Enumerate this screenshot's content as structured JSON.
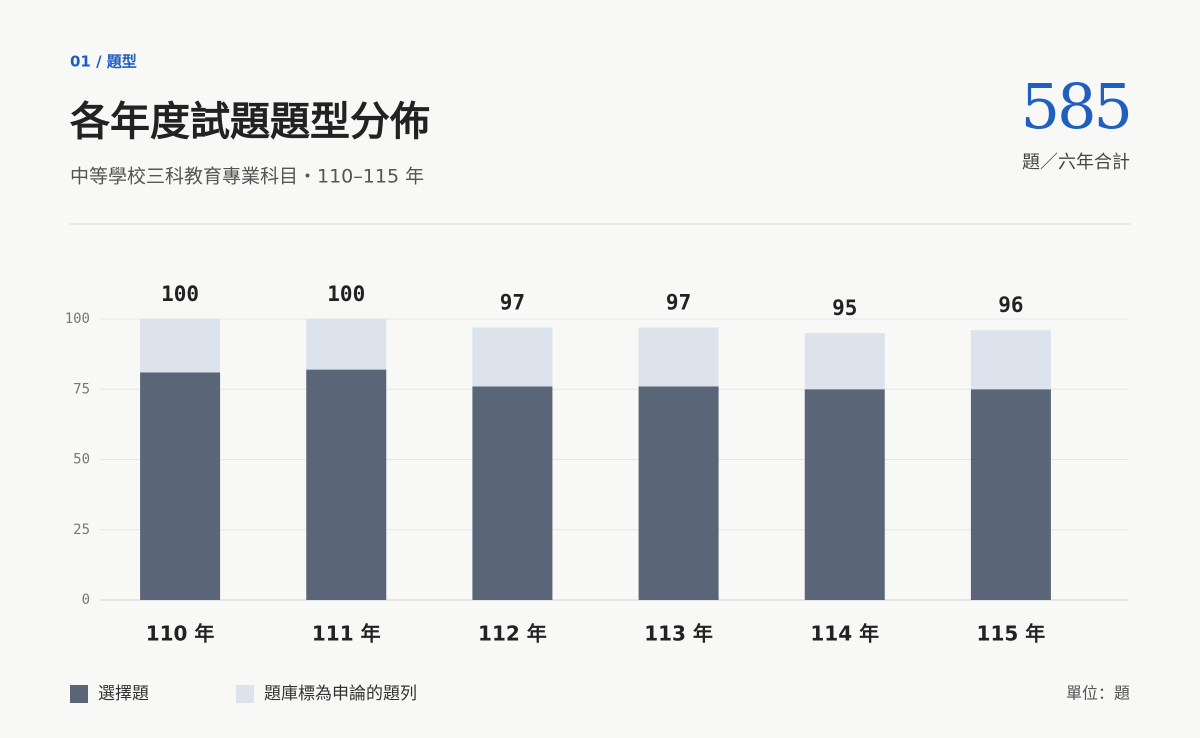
{
  "header": {
    "eyebrow": "01 / 題型",
    "title": "各年度試題題型分佈",
    "subtitle": "中等學校三科教育專業科目・110–115 年"
  },
  "summary": {
    "value": 585,
    "caption": "題／六年合計"
  },
  "unit_note": "單位：題",
  "chart_data": {
    "type": "stacked_bar",
    "categories": [
      "110 年",
      "111 年",
      "112 年",
      "113 年",
      "114 年",
      "115 年"
    ],
    "series": [
      {
        "name": "選擇題",
        "color": "#5a6577",
        "values": [
          81,
          82,
          76,
          76,
          75,
          75
        ]
      },
      {
        "name": "題庫標為申論的題列",
        "color": "#dde3ec",
        "values": [
          19,
          18,
          21,
          21,
          20,
          21
        ]
      }
    ],
    "totals": [
      100,
      100,
      97,
      97,
      95,
      96
    ],
    "ylim": [
      0,
      100
    ],
    "yticks": [
      0,
      25,
      50,
      75,
      100
    ],
    "grid": true
  }
}
